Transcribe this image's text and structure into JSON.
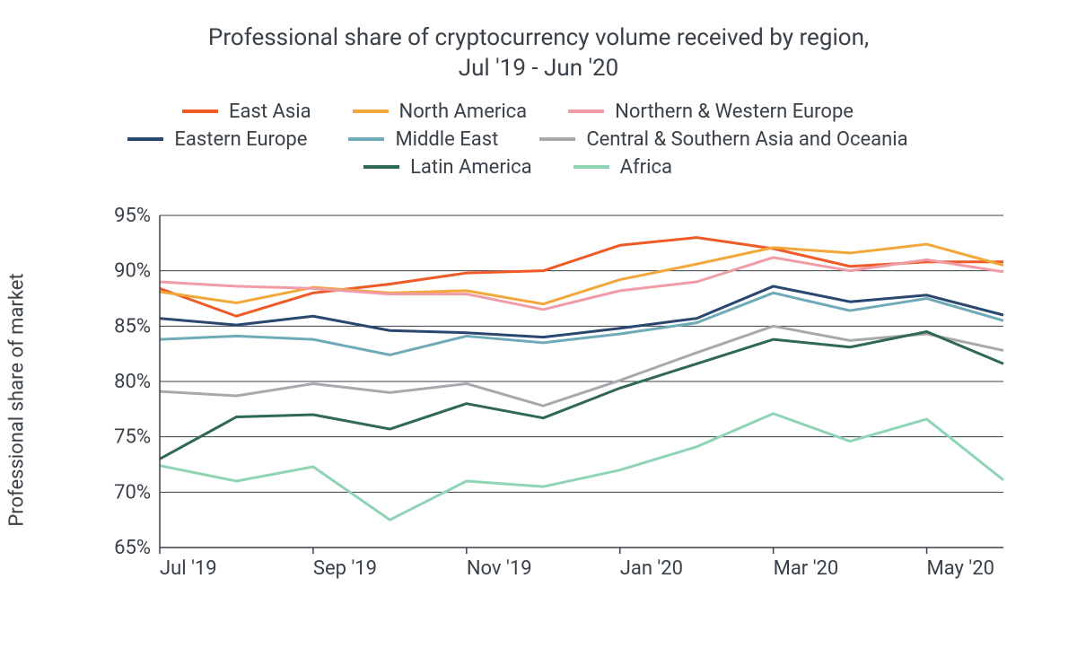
{
  "chart": {
    "type": "line",
    "title_line1": "Professional share of cryptocurrency volume received by region,",
    "title_line2": "Jul '19 - Jun '20",
    "title_fontsize": 26,
    "title_color": "#3a4149",
    "background_color": "#ffffff",
    "y_axis_title": "Professional share of market",
    "axis_label_fontsize": 22,
    "axis_label_color": "#3a4149",
    "grid_color": "#3a4149",
    "axis_color": "#3a4149",
    "line_width": 3,
    "legend_swatch_width": 40,
    "legend_swatch_height": 4,
    "ylim": [
      65,
      95
    ],
    "ytick_step": 5,
    "yticks": [
      65,
      70,
      75,
      80,
      85,
      90,
      95
    ],
    "ytick_labels": [
      "65%",
      "70%",
      "75%",
      "80%",
      "85%",
      "90%",
      "95%"
    ],
    "x_categories": [
      "Jul '19",
      "Aug '19",
      "Sep '19",
      "Oct '19",
      "Nov '19",
      "Dec '19",
      "Jan '20",
      "Feb '20",
      "Mar '20",
      "Apr '20",
      "May '20",
      "Jun '20"
    ],
    "x_tick_indices": [
      0,
      2,
      4,
      6,
      8,
      10
    ],
    "x_tick_labels": [
      "Jul '19",
      "Sep '19",
      "Nov '19",
      "Jan '20",
      "Mar '20",
      "May '20"
    ],
    "series": [
      {
        "name": "East Asia",
        "color": "#ef5a28",
        "values": [
          88.4,
          85.9,
          88.0,
          88.8,
          89.8,
          90.0,
          92.3,
          93.0,
          92.0,
          90.4,
          90.8,
          90.8
        ]
      },
      {
        "name": "North America",
        "color": "#f3a73a",
        "values": [
          88.1,
          87.1,
          88.5,
          88.0,
          88.2,
          87.0,
          89.2,
          90.6,
          92.1,
          91.6,
          92.4,
          90.5
        ]
      },
      {
        "name": "Northern & Western Europe",
        "color": "#f09ba5",
        "values": [
          89.0,
          88.6,
          88.4,
          87.9,
          87.9,
          86.5,
          88.2,
          89.0,
          91.2,
          90.0,
          91.0,
          89.9
        ]
      },
      {
        "name": "Eastern Europe",
        "color": "#2a4770",
        "values": [
          85.7,
          85.1,
          85.9,
          84.6,
          84.4,
          84.0,
          84.8,
          85.7,
          88.6,
          87.2,
          87.8,
          86.0
        ]
      },
      {
        "name": "Middle East",
        "color": "#6faab8",
        "values": [
          83.8,
          84.1,
          83.8,
          82.4,
          84.1,
          83.5,
          84.3,
          85.3,
          88.0,
          86.4,
          87.5,
          85.5
        ]
      },
      {
        "name": "Central & Southern Asia and Oceania",
        "color": "#a7a9ac",
        "values": [
          79.1,
          78.7,
          79.8,
          79.0,
          79.8,
          77.8,
          80.1,
          82.6,
          85.0,
          83.7,
          84.3,
          82.8
        ]
      },
      {
        "name": "Latin America",
        "color": "#2f6854",
        "values": [
          73.0,
          76.8,
          77.0,
          75.7,
          78.0,
          76.7,
          79.4,
          81.6,
          83.8,
          83.1,
          84.5,
          81.6
        ]
      },
      {
        "name": "Africa",
        "color": "#8fd4b4",
        "values": [
          72.4,
          71.0,
          72.3,
          67.5,
          71.0,
          70.5,
          72.0,
          74.1,
          77.1,
          74.6,
          76.6,
          71.1
        ]
      }
    ]
  }
}
